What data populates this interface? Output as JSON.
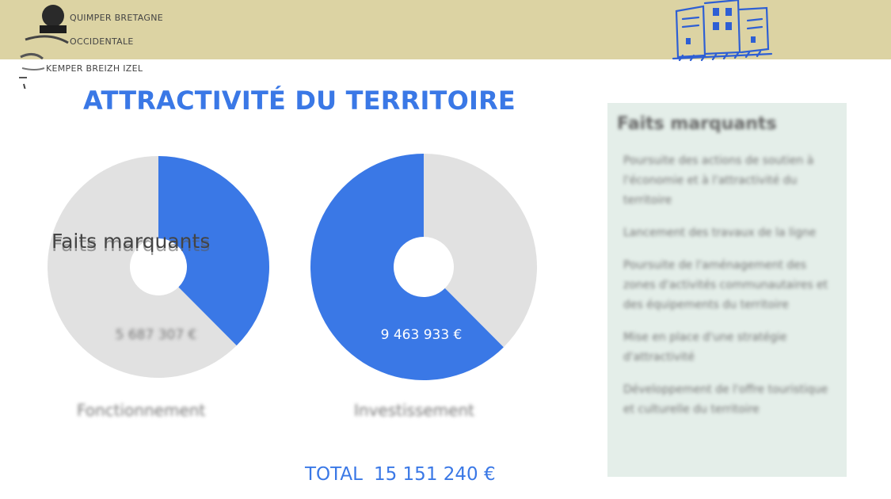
{
  "header": {
    "brand_line1": "QUIMPER BRETAGNE",
    "brand_line2": "OCCIDENTALE",
    "brand_line3": "KEMPER BREIZH IZEL",
    "logo_icon": "quimper-logo-icon",
    "building_icon": "building-sketch-icon"
  },
  "title": "ATTRACTIVITÉ DU TERRITOIRE",
  "overlay_text": "Faits marquants",
  "colors": {
    "accent": "#3a78e6",
    "remainder": "#e1e1e1",
    "band": "#dcd3a3",
    "panel": "#e4eee9"
  },
  "chart_data": [
    {
      "type": "pie",
      "caption": "Fonctionnement",
      "value_label": "5 687 307 €",
      "value": 5687307,
      "total": 15151240,
      "highlight_color": "#3a78e6",
      "rest_color": "#e1e1e1"
    },
    {
      "type": "pie",
      "caption": "Investissement",
      "value_label": "9 463 933 €",
      "value": 9463933,
      "total": 15151240,
      "highlight_color": "#3a78e6",
      "rest_color": "#e1e1e1"
    }
  ],
  "total": {
    "label": "TOTAL",
    "amount": "15 151 240 €"
  },
  "panel": {
    "title": "Faits marquants",
    "items": [
      "Poursuite des actions de soutien à l'économie et à l'attractivité du territoire",
      "Lancement des travaux de la ligne",
      "Poursuite de l'aménagement des zones d'activités communautaires et des équipements du territoire",
      "Mise en place d'une stratégie d'attractivité",
      "Développement de l'offre touristique et culturelle du territoire"
    ]
  }
}
